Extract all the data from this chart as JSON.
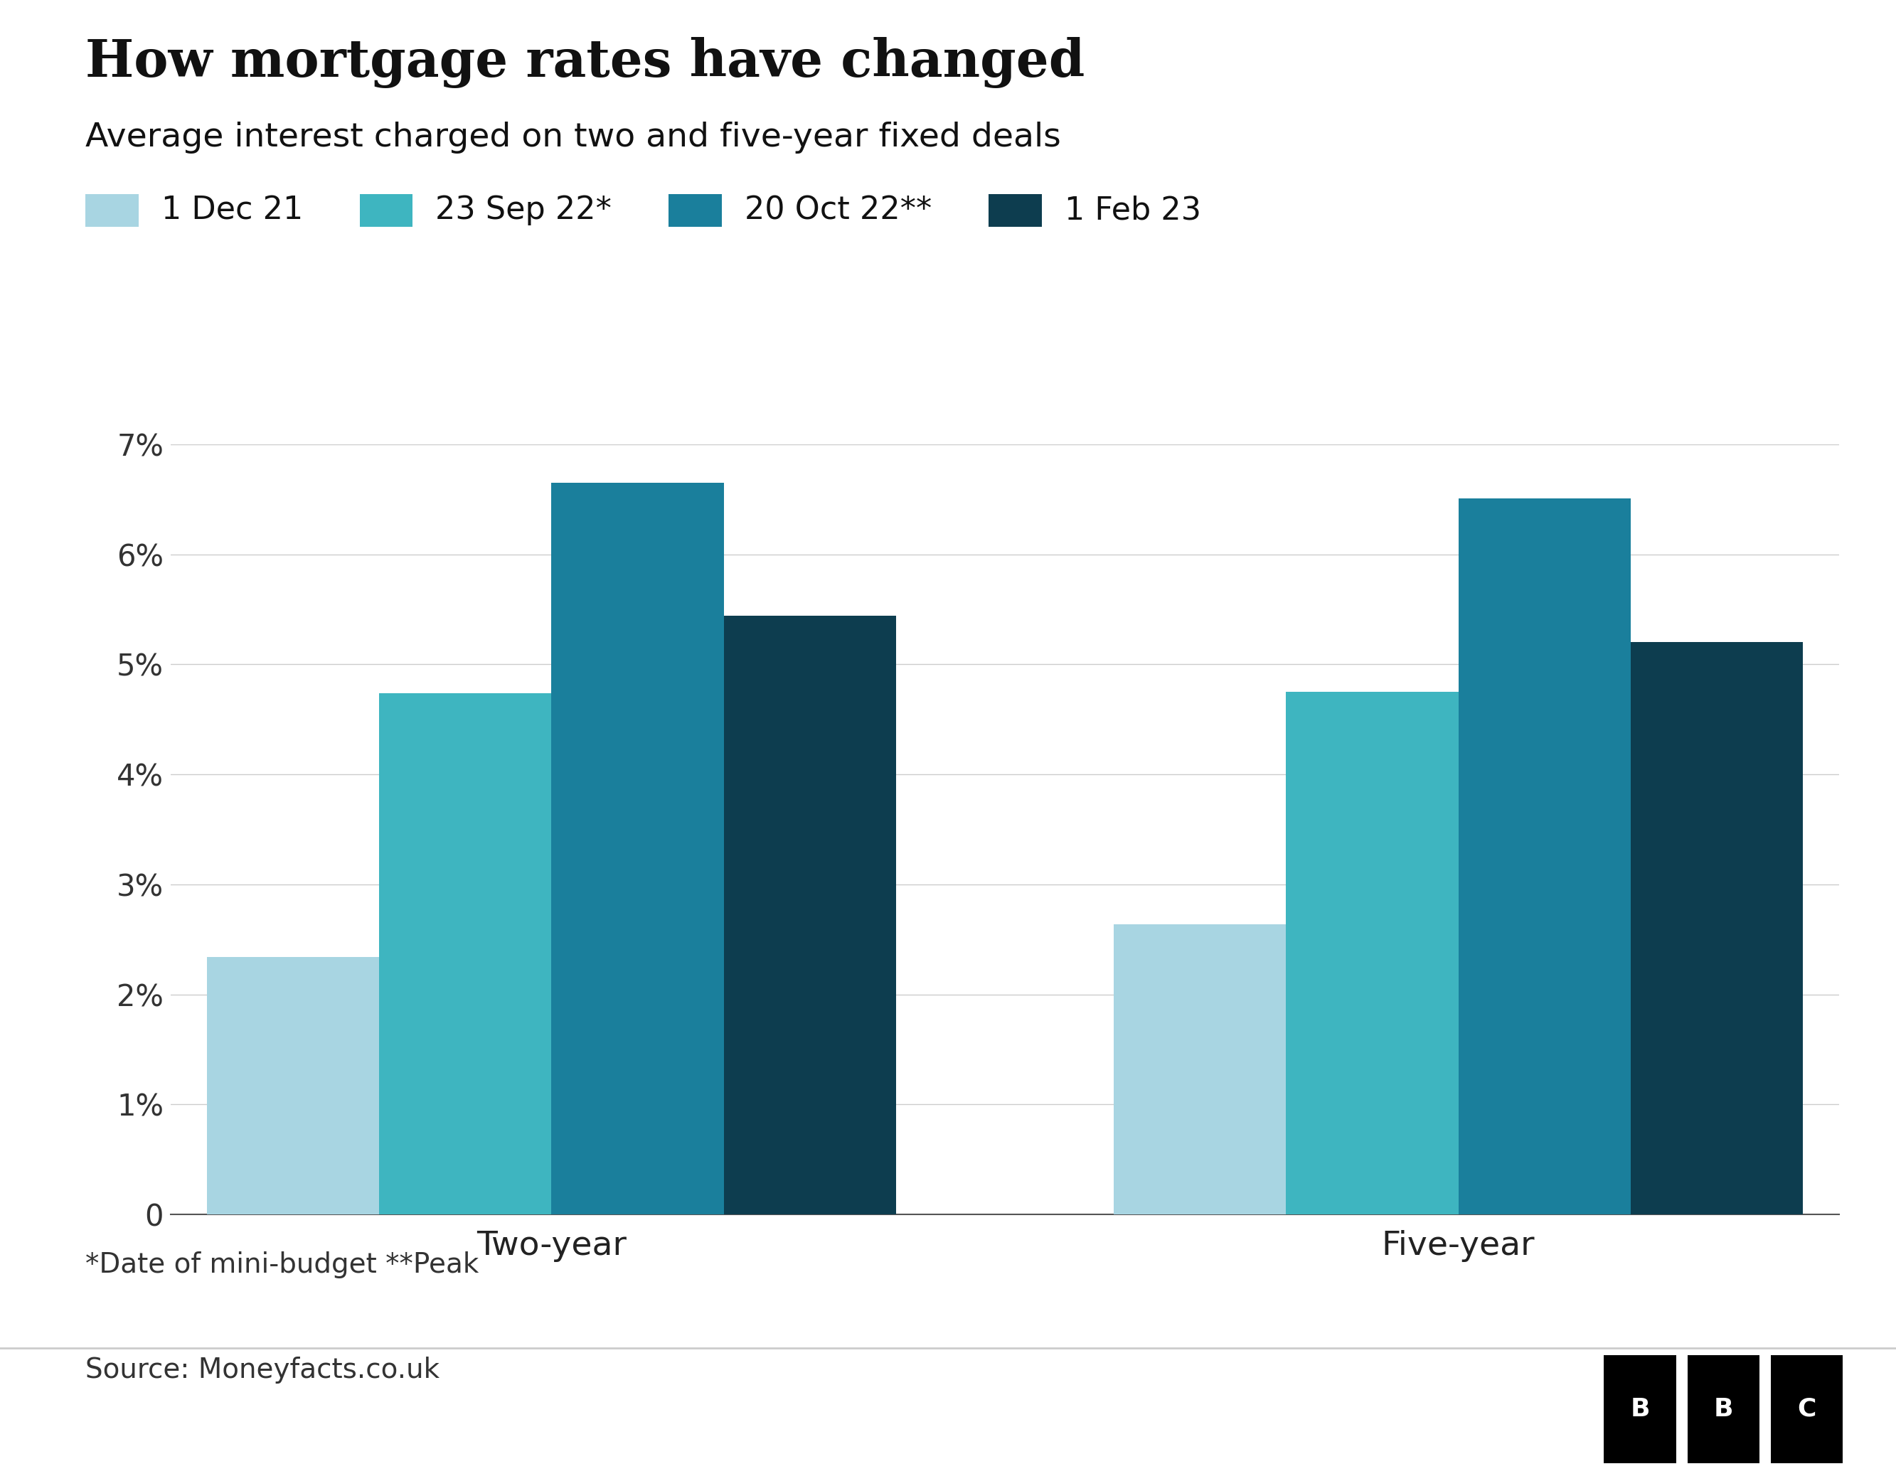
{
  "title": "How mortgage rates have changed",
  "subtitle": "Average interest charged on two and five-year fixed deals",
  "categories": [
    "Two-year",
    "Five-year"
  ],
  "series": [
    {
      "label": "1 Dec 21",
      "color": "#a8d5e2",
      "values": [
        2.34,
        2.64
      ]
    },
    {
      "label": "23 Sep 22*",
      "color": "#3eb5c0",
      "values": [
        4.74,
        4.75
      ]
    },
    {
      "label": "20 Oct 22**",
      "color": "#1a7f9c",
      "values": [
        6.65,
        6.51
      ]
    },
    {
      "label": "1 Feb 23",
      "color": "#0d3d4f",
      "values": [
        5.44,
        5.2
      ]
    }
  ],
  "ylim": [
    0,
    7.0
  ],
  "yticks": [
    0,
    1,
    2,
    3,
    4,
    5,
    6,
    7
  ],
  "ytick_labels": [
    "0",
    "1%",
    "2%",
    "3%",
    "4%",
    "5%",
    "6%",
    "7%"
  ],
  "footnote": "*Date of mini-budget **Peak",
  "source": "Source: Moneyfacts.co.uk",
  "background_color": "#ffffff",
  "title_fontsize": 52,
  "subtitle_fontsize": 34,
  "legend_fontsize": 32,
  "tick_fontsize": 30,
  "xtick_fontsize": 34,
  "footnote_fontsize": 28,
  "source_fontsize": 28
}
